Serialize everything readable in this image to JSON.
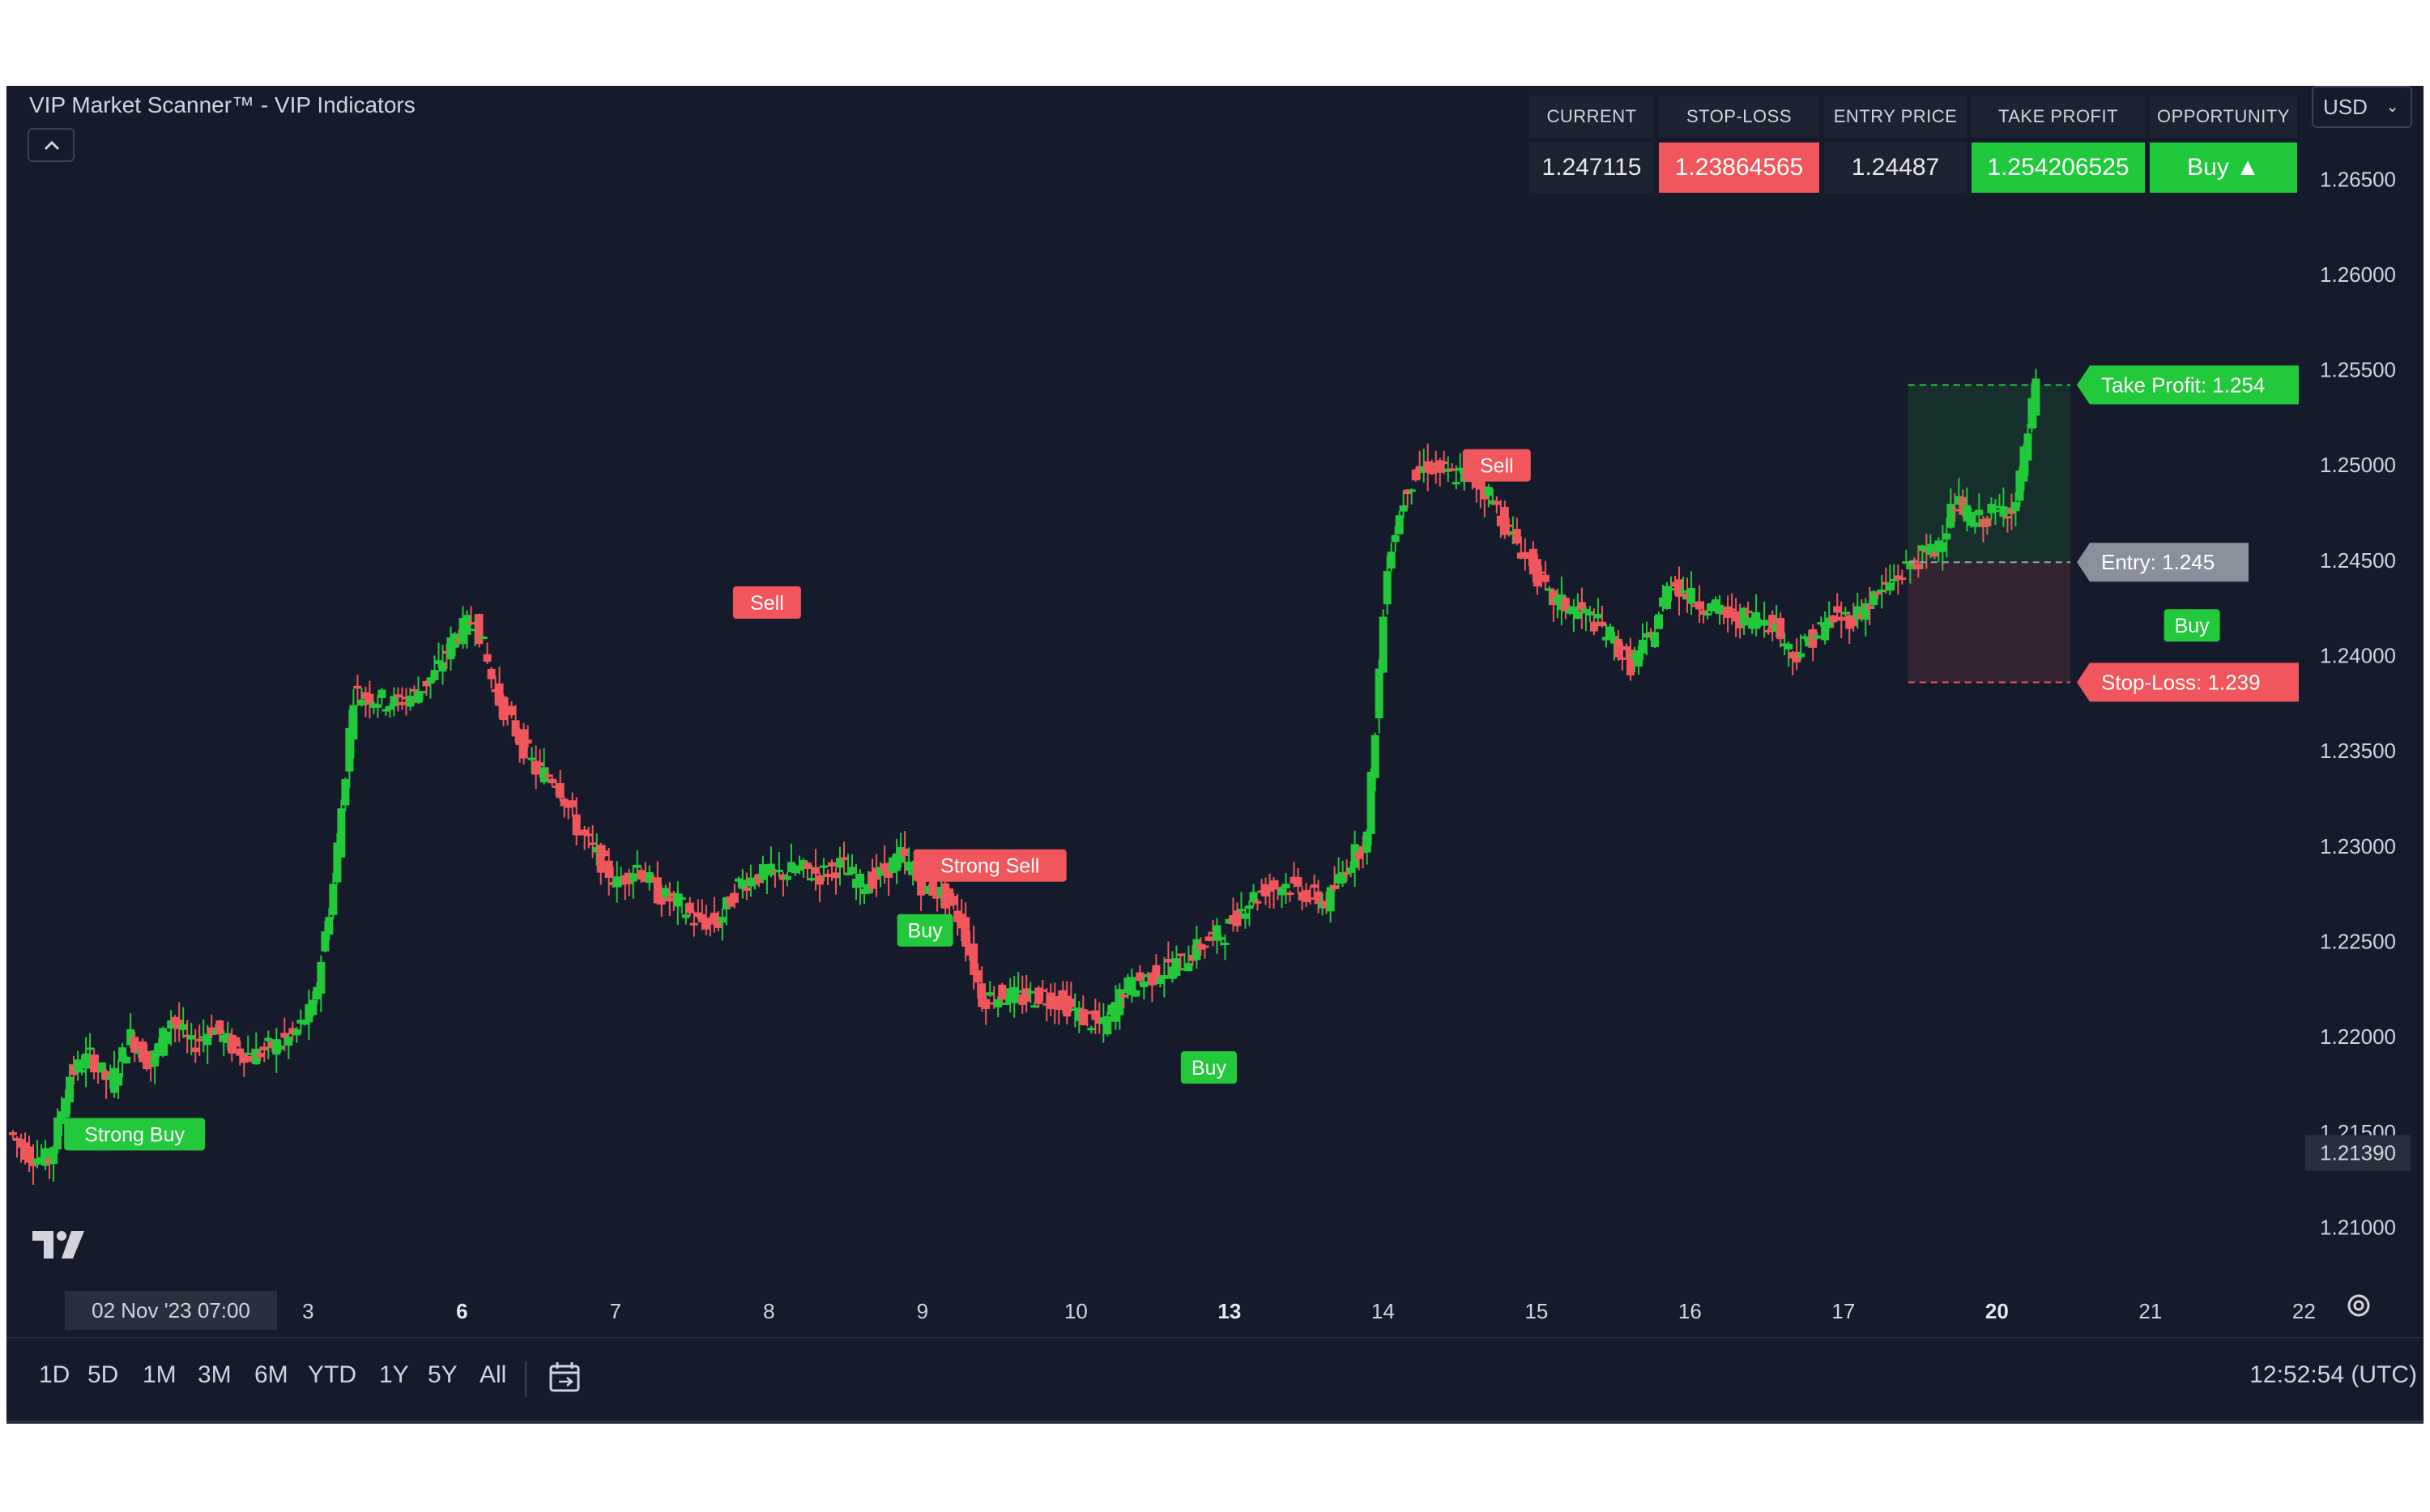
{
  "title": "VIP Market Scanner™ - VIP Indicators",
  "table": {
    "headers": [
      "CURRENT",
      "STOP-LOSS",
      "ENTRY PRICE",
      "TAKE PROFIT",
      "OPPORTUNITY"
    ],
    "values": [
      "1.247115",
      "1.23864565",
      "1.24487",
      "1.254206525",
      "Buy ▲"
    ]
  },
  "currency": "USD",
  "colors": {
    "bg": "#161b2c",
    "up": "#22c93a",
    "down": "#f0565b",
    "text": "#d1d4dc"
  },
  "icons": [
    "chevron-up-icon",
    "chevron-down-icon",
    "calendar-icon",
    "gear-icon",
    "tradingview-logo"
  ],
  "timeframes": [
    "1D",
    "5D",
    "1M",
    "3M",
    "6M",
    "YTD",
    "1Y",
    "5Y",
    "All"
  ],
  "clock": "12:52:54 (UTC)",
  "crosshair_time": "02 Nov '23   07:00",
  "chart_data": {
    "type": "candlestick",
    "y_ticks": [
      "1.26500",
      "1.26000",
      "1.25500",
      "1.25000",
      "1.24500",
      "1.24000",
      "1.23500",
      "1.23000",
      "1.22500",
      "1.22000",
      "1.21500",
      "1.21000"
    ],
    "ylim": [
      1.207,
      1.2665
    ],
    "last_price_label": "1.21390",
    "x_ticks": [
      "3",
      "6",
      "7",
      "8",
      "9",
      "10",
      "13",
      "14",
      "15",
      "16",
      "17",
      "20",
      "21",
      "22"
    ],
    "bold_x_ticks": [
      "6",
      "13",
      "20"
    ],
    "signals": [
      {
        "label": "Strong Buy",
        "kind": "buy",
        "x": 0.6,
        "y": 1.2148
      },
      {
        "label": "Sell",
        "kind": "sell",
        "x": 3.72,
        "y": 1.2427
      },
      {
        "label": "Buy",
        "kind": "buy",
        "x": 4.5,
        "y": 1.2255
      },
      {
        "label": "Strong Sell",
        "kind": "sell",
        "x": 4.82,
        "y": 1.2289
      },
      {
        "label": "Buy",
        "kind": "buy",
        "x": 5.9,
        "y": 1.2183
      },
      {
        "label": "Sell",
        "kind": "sell",
        "x": 7.32,
        "y": 1.2499
      },
      {
        "label": "Buy",
        "kind": "buy",
        "x": 10.75,
        "y": 1.2415
      }
    ],
    "position_labels": [
      {
        "label": "Take Profit: 1.254",
        "kind": "tp",
        "y": 1.2542
      },
      {
        "label": "Entry: 1.245",
        "kind": "entry",
        "y": 1.2449
      },
      {
        "label": "Stop-Loss: 1.239",
        "kind": "sl",
        "y": 1.2386
      }
    ],
    "price_path": [
      [
        0.0,
        1.215
      ],
      [
        0.1,
        1.2138
      ],
      [
        0.2,
        1.2135
      ],
      [
        0.3,
        1.218
      ],
      [
        0.4,
        1.219
      ],
      [
        0.5,
        1.2175
      ],
      [
        0.6,
        1.22
      ],
      [
        0.7,
        1.2185
      ],
      [
        0.8,
        1.221
      ],
      [
        0.9,
        1.2195
      ],
      [
        1.0,
        1.2205
      ],
      [
        1.1,
        1.2195
      ],
      [
        1.2,
        1.219
      ],
      [
        1.3,
        1.2195
      ],
      [
        1.4,
        1.22
      ],
      [
        1.5,
        1.2215
      ],
      [
        1.6,
        1.228
      ],
      [
        1.7,
        1.238
      ],
      [
        1.8,
        1.2378
      ],
      [
        1.9,
        1.2375
      ],
      [
        2.0,
        1.238
      ],
      [
        2.1,
        1.239
      ],
      [
        2.2,
        1.241
      ],
      [
        2.3,
        1.242
      ],
      [
        2.4,
        1.238
      ],
      [
        2.5,
        1.236
      ],
      [
        2.6,
        1.234
      ],
      [
        2.7,
        1.2335
      ],
      [
        2.8,
        1.231
      ],
      [
        2.9,
        1.2295
      ],
      [
        3.0,
        1.228
      ],
      [
        3.1,
        1.229
      ],
      [
        3.2,
        1.2275
      ],
      [
        3.3,
        1.227
      ],
      [
        3.4,
        1.226
      ],
      [
        3.5,
        1.226
      ],
      [
        3.6,
        1.228
      ],
      [
        3.7,
        1.2285
      ],
      [
        3.8,
        1.2285
      ],
      [
        3.9,
        1.2288
      ],
      [
        4.0,
        1.2285
      ],
      [
        4.1,
        1.229
      ],
      [
        4.2,
        1.228
      ],
      [
        4.3,
        1.2285
      ],
      [
        4.4,
        1.2295
      ],
      [
        4.5,
        1.228
      ],
      [
        4.6,
        1.2275
      ],
      [
        4.7,
        1.226
      ],
      [
        4.8,
        1.222
      ],
      [
        4.9,
        1.2222
      ],
      [
        5.0,
        1.222
      ],
      [
        5.1,
        1.2222
      ],
      [
        5.2,
        1.2218
      ],
      [
        5.3,
        1.221
      ],
      [
        5.4,
        1.2205
      ],
      [
        5.5,
        1.2225
      ],
      [
        5.6,
        1.223
      ],
      [
        5.7,
        1.2235
      ],
      [
        5.8,
        1.224
      ],
      [
        5.9,
        1.225
      ],
      [
        6.0,
        1.2255
      ],
      [
        6.1,
        1.227
      ],
      [
        6.2,
        1.2278
      ],
      [
        6.3,
        1.228
      ],
      [
        6.4,
        1.2275
      ],
      [
        6.5,
        1.227
      ],
      [
        6.6,
        1.229
      ],
      [
        6.7,
        1.2305
      ],
      [
        6.8,
        1.245
      ],
      [
        6.9,
        1.249
      ],
      [
        7.0,
        1.25
      ],
      [
        7.1,
        1.2495
      ],
      [
        7.2,
        1.2495
      ],
      [
        7.3,
        1.2485
      ],
      [
        7.4,
        1.2465
      ],
      [
        7.5,
        1.245
      ],
      [
        7.6,
        1.243
      ],
      [
        7.7,
        1.2425
      ],
      [
        7.8,
        1.242
      ],
      [
        7.9,
        1.241
      ],
      [
        8.0,
        1.2395
      ],
      [
        8.1,
        1.241
      ],
      [
        8.2,
        1.244
      ],
      [
        8.3,
        1.243
      ],
      [
        8.4,
        1.2425
      ],
      [
        8.5,
        1.242
      ],
      [
        8.6,
        1.242
      ],
      [
        8.7,
        1.2418
      ],
      [
        8.8,
        1.24
      ],
      [
        8.9,
        1.241
      ],
      [
        9.0,
        1.242
      ],
      [
        9.1,
        1.242
      ],
      [
        9.2,
        1.243
      ],
      [
        9.3,
        1.244
      ],
      [
        9.4,
        1.245
      ],
      [
        9.5,
        1.2455
      ],
      [
        9.6,
        1.248
      ],
      [
        9.7,
        1.247
      ],
      [
        9.8,
        1.2475
      ],
      [
        9.9,
        1.248
      ],
      [
        10.0,
        1.2542
      ]
    ]
  }
}
